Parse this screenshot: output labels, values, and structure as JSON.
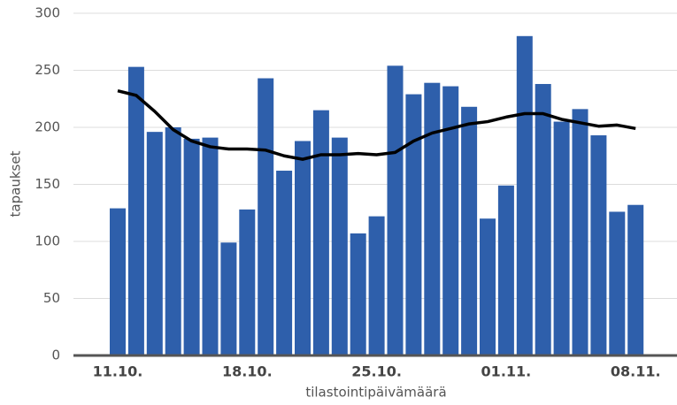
{
  "chart_data": {
    "type": "bar-line",
    "x_label": "tilastointipäivämäärä",
    "y_label": "tapaukset",
    "categories": [
      "11.10.",
      null,
      null,
      null,
      null,
      null,
      null,
      "18.10.",
      null,
      null,
      null,
      null,
      null,
      null,
      "25.10.",
      null,
      null,
      null,
      null,
      null,
      null,
      "01.11.",
      null,
      null,
      null,
      null,
      null,
      null,
      "08.11."
    ],
    "series": [
      {
        "type": "bar",
        "color": "#2e5fab",
        "values": [
          129,
          253,
          196,
          200,
          190,
          191,
          99,
          128,
          243,
          162,
          188,
          215,
          191,
          107,
          122,
          254,
          229,
          239,
          236,
          218,
          120,
          149,
          280,
          238,
          205,
          216,
          193,
          126,
          132
        ]
      },
      {
        "type": "line",
        "color": "#000000",
        "values": [
          232,
          228,
          214,
          198,
          188,
          183,
          181,
          181,
          180,
          175,
          172,
          176,
          176,
          177,
          176,
          178,
          188,
          195,
          199,
          203,
          205,
          209,
          212,
          212,
          207,
          204,
          201,
          202,
          199
        ]
      }
    ],
    "ylim": [
      0,
      300
    ],
    "yticks": [
      0,
      50,
      100,
      150,
      200,
      250,
      300
    ],
    "grid": true
  }
}
